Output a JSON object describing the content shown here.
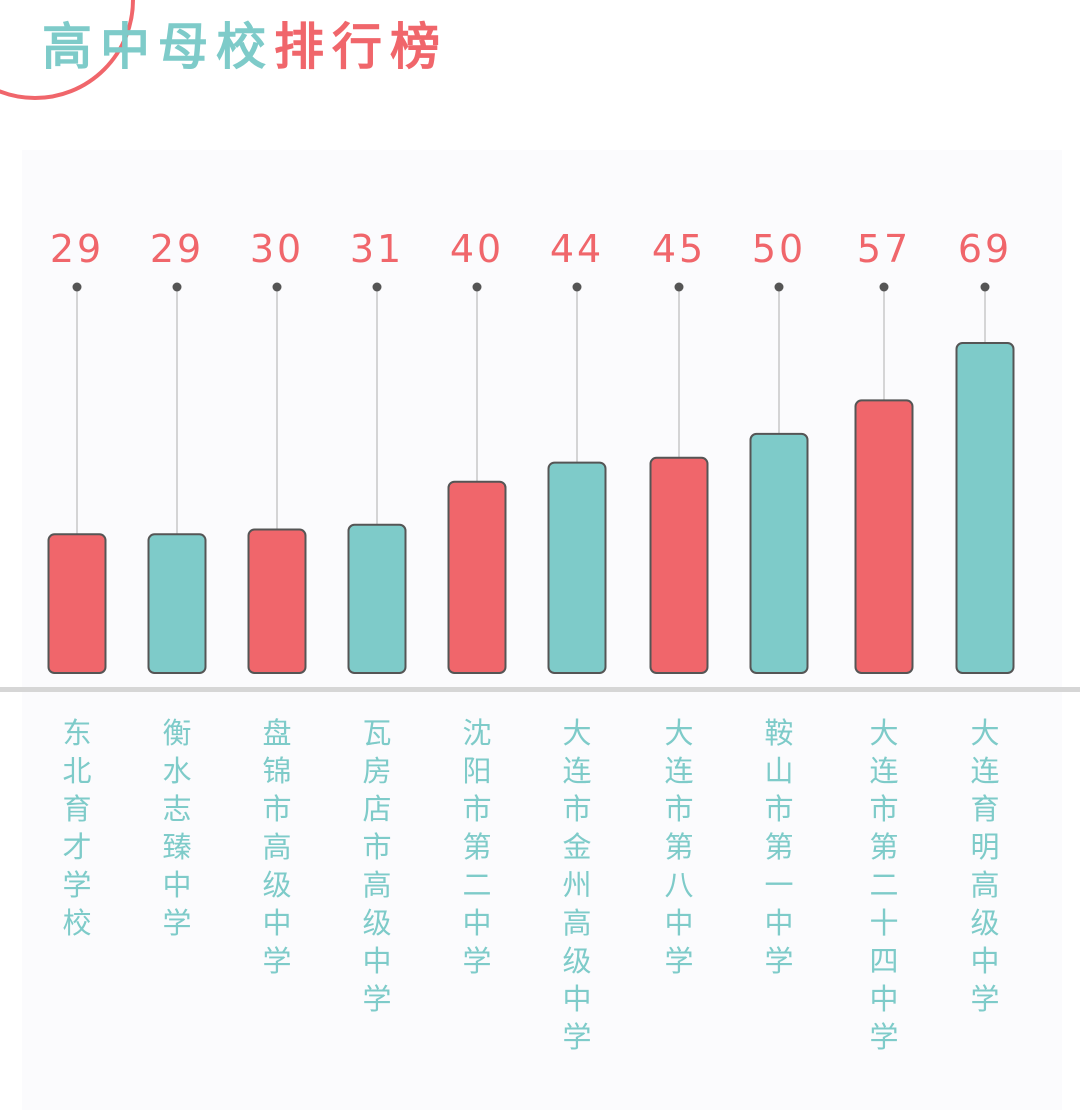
{
  "title": {
    "part1": "高中母校",
    "part2": "排行榜"
  },
  "colors": {
    "teal": "#7ecbc9",
    "red": "#f0666b",
    "outline": "#555555",
    "baseline": "#d6d6d6"
  },
  "chart_data": {
    "type": "bar",
    "title": "高中母校排行榜",
    "categories": [
      "东北育才学校",
      "衡水志臻中学",
      "盘锦市高级中学",
      "瓦房店市高级中学",
      "沈阳市第二中学",
      "大连市金州高级中学",
      "大连市第八中学",
      "鞍山市第一中学",
      "大连市第二十四中学",
      "大连育明高级中学"
    ],
    "values": [
      29,
      29,
      30,
      31,
      40,
      44,
      45,
      50,
      57,
      69
    ],
    "bar_colors": [
      "red",
      "teal",
      "red",
      "teal",
      "red",
      "teal",
      "red",
      "teal",
      "red",
      "teal"
    ],
    "ylim": [
      0,
      69
    ],
    "grid": false,
    "legend": "none",
    "data_labels": true
  }
}
